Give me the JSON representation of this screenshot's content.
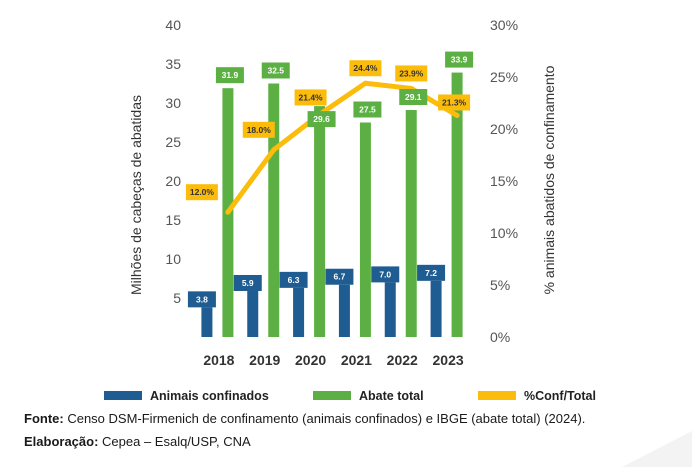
{
  "chart_data": {
    "type": "bar+line",
    "categories": [
      "2018",
      "2019",
      "2020",
      "2021",
      "2022",
      "2023"
    ],
    "series": [
      {
        "name": "Animais confinados",
        "type": "bar",
        "axis": "left",
        "color": "#1f5c91",
        "values": [
          3.8,
          5.9,
          6.3,
          6.7,
          7.0,
          7.2
        ],
        "labels": [
          "3.8",
          "5.9",
          "6.3",
          "6.7",
          "7.0",
          "7.2"
        ]
      },
      {
        "name": "Abate total",
        "type": "bar",
        "axis": "left",
        "color": "#5cb043",
        "values": [
          31.9,
          32.5,
          29.6,
          27.5,
          29.1,
          33.9
        ],
        "labels": [
          "31.9",
          "32.5",
          "29.6",
          "27.5",
          "29.1",
          "33.9"
        ]
      },
      {
        "name": "%Conf/Total",
        "type": "line",
        "axis": "right",
        "color": "#fbbc0b",
        "values": [
          12.0,
          18.0,
          21.4,
          24.4,
          23.9,
          21.3
        ],
        "labels": [
          "12.0%",
          "18.0%",
          "21.4%",
          "24.4%",
          "23.9%",
          "21.3%"
        ]
      }
    ],
    "ylabel": "Milhões de cabeças de abatidas",
    "y2label": "% animais abatidos de confinamento",
    "ylim": [
      0,
      40
    ],
    "y2lim": [
      0,
      30
    ],
    "yticks": [
      "5",
      "10",
      "15",
      "20",
      "25",
      "30",
      "35",
      "40"
    ],
    "y2ticks": [
      "0%",
      "5%",
      "10%",
      "15%",
      "20%",
      "25%",
      "30%"
    ],
    "grid": false,
    "legend": "bottom"
  },
  "footer": {
    "source_label": "Fonte:",
    "source_text": " Censo DSM-Firmenich de confinamento (animais confinados) e IBGE (abate total) (2024).",
    "credit_label": "Elaboração:",
    "credit_text": " Cepea – Esalq/USP, CNA"
  }
}
